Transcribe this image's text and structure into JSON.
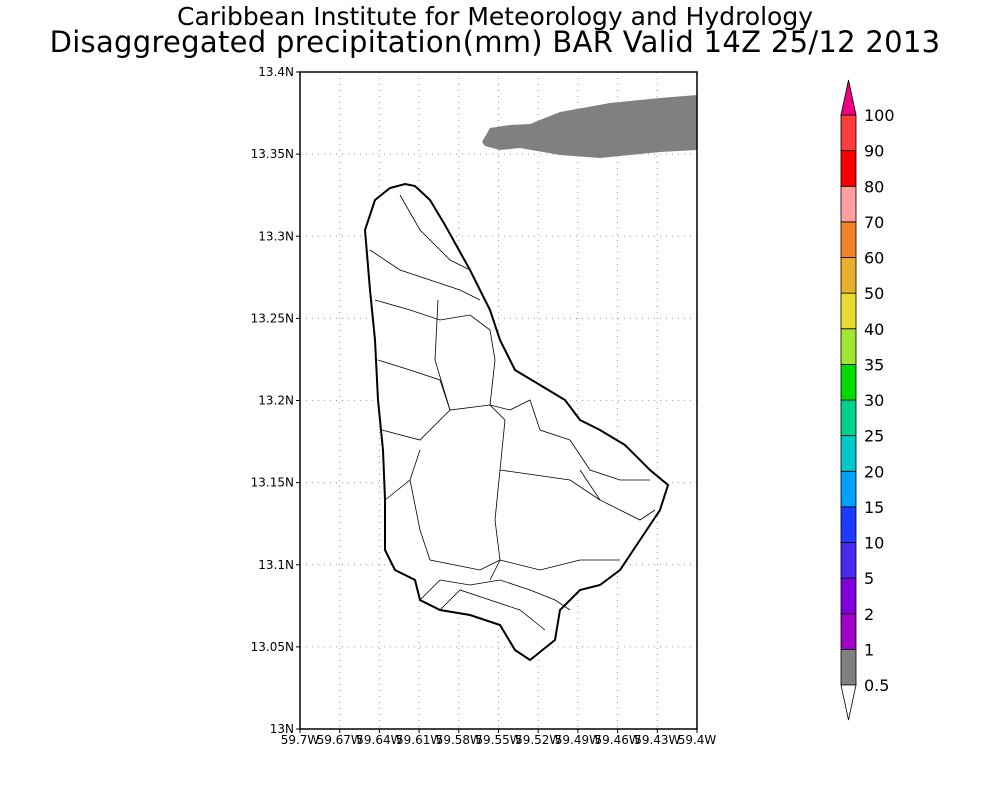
{
  "title_line1": "Caribbean Institute for Meteorology and Hydrology",
  "title_line2": "Disaggregated precipitation(mm) BAR Valid 14Z 25/12 2013",
  "map": {
    "lat_range": [
      13.0,
      13.4
    ],
    "lon_range": [
      -59.7,
      -59.4
    ],
    "lat_labels": [
      "13N",
      "13.05N",
      "13.1N",
      "13.15N",
      "13.2N",
      "13.25N",
      "13.3N",
      "13.35N",
      "13.4N"
    ],
    "lon_labels": [
      "59.7W",
      "59.67W",
      "59.64W",
      "59.61W",
      "59.58W",
      "59.55W",
      "59.52W",
      "59.49W",
      "59.46W",
      "59.43W",
      "59.4W"
    ],
    "grid": "dotted"
  },
  "colorbar": {
    "labels": [
      "0.5",
      "1",
      "2",
      "5",
      "10",
      "15",
      "20",
      "25",
      "30",
      "35",
      "40",
      "50",
      "60",
      "70",
      "80",
      "90",
      "100"
    ],
    "colors": [
      "#808080",
      "#a000c8",
      "#8200dc",
      "#4b28f0",
      "#1e3cff",
      "#00a0ff",
      "#00c8c8",
      "#00d28c",
      "#00dc00",
      "#a0e632",
      "#e6dc32",
      "#e6af2d",
      "#f08228",
      "#ffa0a0",
      "#fa0000",
      "#ff3c3c"
    ],
    "under_color": "#ffffff",
    "over_color": "#f00082"
  }
}
